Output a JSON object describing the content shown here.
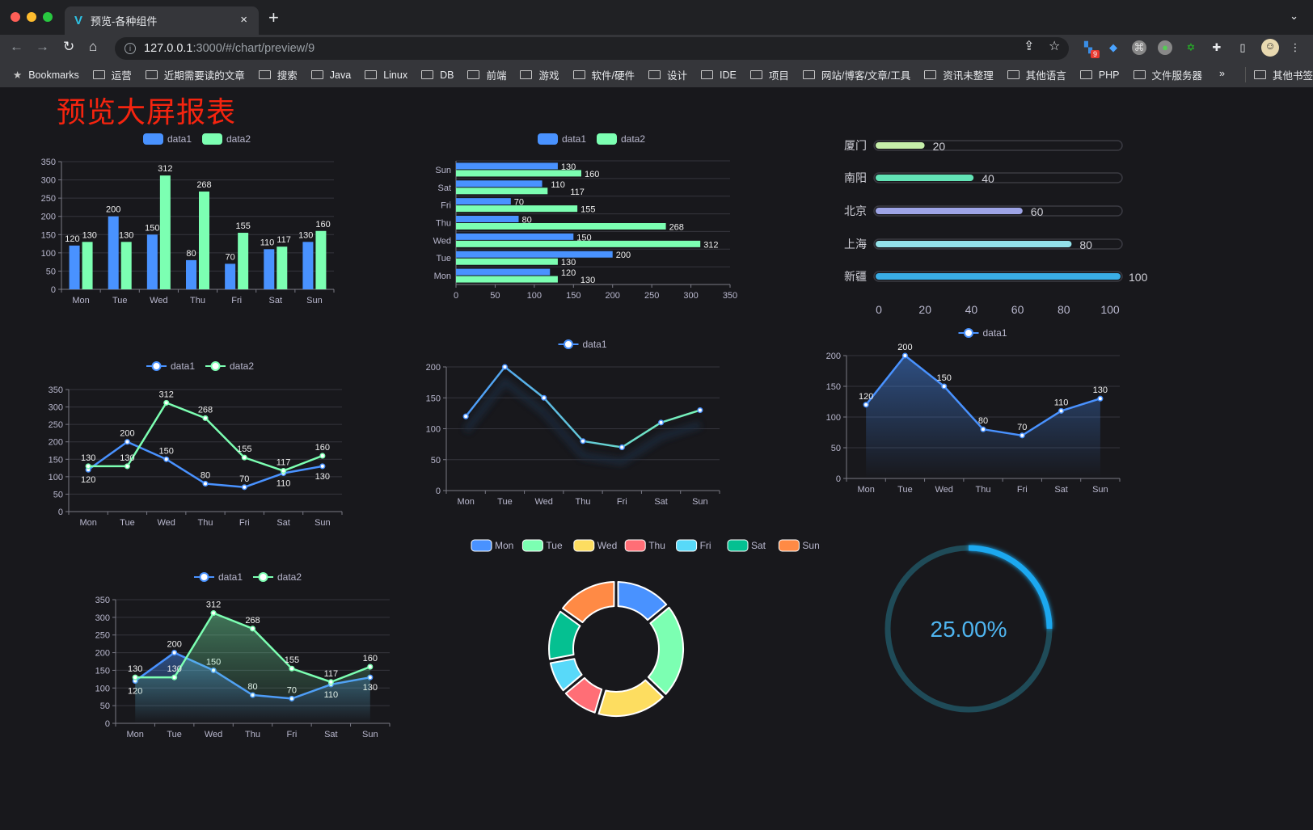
{
  "browser": {
    "tab_title": "预览-各种组件",
    "tab_close": "×",
    "new_tab": "+",
    "url_host": "127.0.0.1",
    "url_rest": ":3000/#/chart/preview/9",
    "extension_badge": "9",
    "bookmarks_label": "Bookmarks",
    "bookmarks": [
      "运营",
      "近期需要读的文章",
      "搜索",
      "Java",
      "Linux",
      "DB",
      "前端",
      "游戏",
      "软件/硬件",
      "设计",
      "IDE",
      "项目",
      "网站/博客/文章/工具",
      "资讯未整理",
      "其他语言",
      "PHP",
      "文件服务器"
    ],
    "more": "»",
    "other_bookmarks": "其他书签"
  },
  "page": {
    "title": "预览大屏报表",
    "title_color": "#f5240f"
  },
  "colors": {
    "data1": "#4992ff",
    "data2": "#7cffb2",
    "pie": [
      "#4992ff",
      "#7cffb2",
      "#fddd60",
      "#ff6e76",
      "#58d9f9",
      "#05c091",
      "#ff8a45"
    ],
    "gauge": "#1aa8f0"
  },
  "chart_data": [
    {
      "type": "bar",
      "categories": [
        "Mon",
        "Tue",
        "Wed",
        "Thu",
        "Fri",
        "Sat",
        "Sun"
      ],
      "series": [
        {
          "name": "data1",
          "values": [
            120,
            200,
            150,
            80,
            70,
            110,
            130
          ]
        },
        {
          "name": "data2",
          "values": [
            130,
            130,
            312,
            268,
            155,
            117,
            160
          ]
        }
      ],
      "ylim": [
        0,
        350
      ],
      "yticks": [
        0,
        50,
        100,
        150,
        200,
        250,
        300,
        350
      ],
      "legend": "top",
      "grid": true
    },
    {
      "type": "bar",
      "orientation": "horizontal",
      "categories": [
        "Mon",
        "Tue",
        "Wed",
        "Thu",
        "Fri",
        "Sat",
        "Sun"
      ],
      "series": [
        {
          "name": "data1",
          "values": [
            120,
            200,
            150,
            80,
            70,
            110,
            130
          ]
        },
        {
          "name": "data2",
          "values": [
            130,
            130,
            312,
            268,
            155,
            117,
            160
          ]
        }
      ],
      "xlim": [
        0,
        350
      ],
      "xticks": [
        0,
        50,
        100,
        150,
        200,
        250,
        300,
        350
      ],
      "legend": "top",
      "grid": true
    },
    {
      "type": "bar",
      "orientation": "horizontal",
      "style": "progress",
      "categories": [
        "厦门",
        "南阳",
        "北京",
        "上海",
        "新疆"
      ],
      "values": [
        20,
        40,
        60,
        80,
        100
      ],
      "colors": [
        "#c6eea9",
        "#62e3b6",
        "#9ea4e6",
        "#93e2ea",
        "#3aaee6"
      ],
      "xlim": [
        0,
        100
      ],
      "xticks": [
        0,
        20,
        40,
        60,
        80,
        100
      ]
    },
    {
      "type": "line",
      "categories": [
        "Mon",
        "Tue",
        "Wed",
        "Thu",
        "Fri",
        "Sat",
        "Sun"
      ],
      "series": [
        {
          "name": "data1",
          "values": [
            120,
            200,
            150,
            80,
            70,
            110,
            130
          ]
        },
        {
          "name": "data2",
          "values": [
            130,
            130,
            312,
            268,
            155,
            117,
            160
          ]
        }
      ],
      "ylim": [
        0,
        350
      ],
      "yticks": [
        0,
        50,
        100,
        150,
        200,
        250,
        300,
        350
      ],
      "legend": "top",
      "grid": true
    },
    {
      "type": "line",
      "categories": [
        "Mon",
        "Tue",
        "Wed",
        "Thu",
        "Fri",
        "Sat",
        "Sun"
      ],
      "series": [
        {
          "name": "data1",
          "values": [
            120,
            200,
            150,
            80,
            70,
            110,
            130
          ]
        }
      ],
      "ylim": [
        0,
        200
      ],
      "yticks": [
        0,
        50,
        100,
        150,
        200
      ],
      "legend": "top",
      "grid": true,
      "gradient_stroke": [
        "#4992ff",
        "#7cffb2"
      ],
      "shadow": true
    },
    {
      "type": "area",
      "categories": [
        "Mon",
        "Tue",
        "Wed",
        "Thu",
        "Fri",
        "Sat",
        "Sun"
      ],
      "series": [
        {
          "name": "data1",
          "values": [
            120,
            200,
            150,
            80,
            70,
            110,
            130
          ]
        }
      ],
      "ylim": [
        0,
        200
      ],
      "yticks": [
        0,
        50,
        100,
        150,
        200
      ],
      "legend": "top",
      "grid": true
    },
    {
      "type": "area",
      "categories": [
        "Mon",
        "Tue",
        "Wed",
        "Thu",
        "Fri",
        "Sat",
        "Sun"
      ],
      "series": [
        {
          "name": "data1",
          "values": [
            120,
            200,
            150,
            80,
            70,
            110,
            130
          ]
        },
        {
          "name": "data2",
          "values": [
            130,
            130,
            312,
            268,
            155,
            117,
            160
          ]
        }
      ],
      "ylim": [
        0,
        350
      ],
      "yticks": [
        0,
        50,
        100,
        150,
        200,
        250,
        300,
        350
      ],
      "legend": "top",
      "grid": true
    },
    {
      "type": "pie",
      "style": "donut",
      "categories": [
        "Mon",
        "Tue",
        "Wed",
        "Thu",
        "Fri",
        "Sat",
        "Sun"
      ],
      "values": [
        120,
        200,
        150,
        80,
        70,
        110,
        130
      ],
      "legend": "top"
    },
    {
      "type": "gauge",
      "value": 25,
      "label": "25.00%"
    }
  ]
}
